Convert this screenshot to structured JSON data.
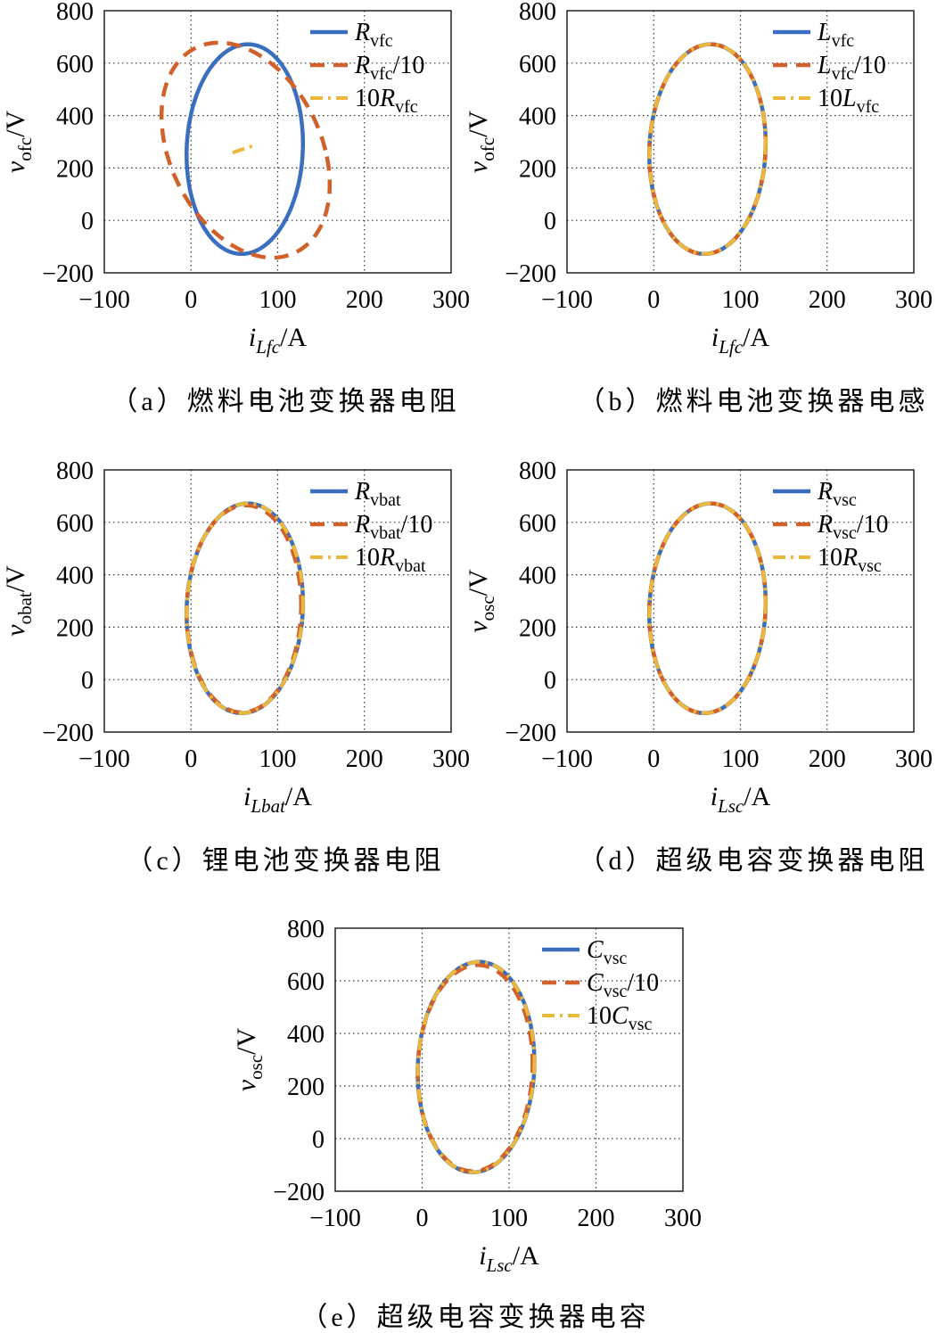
{
  "chart_data": [
    {
      "id": "a",
      "type": "line",
      "caption": "（a）燃料电池变换器电阻",
      "xlabel": {
        "main": "i",
        "sub": "Lfc",
        "unit": "/A"
      },
      "ylabel": {
        "main": "v",
        "sub": "ofc",
        "unit": "/V"
      },
      "xlim": [
        -100,
        300
      ],
      "ylim": [
        -200,
        800
      ],
      "xticks": [
        -100,
        0,
        100,
        200,
        300
      ],
      "yticks": [
        -200,
        0,
        200,
        400,
        600,
        800
      ],
      "grid": true,
      "legend_position": "top-right",
      "series": [
        {
          "legend": {
            "pre": "",
            "sym": "R",
            "sub": "vfc",
            "post": ""
          },
          "color": "#3a6fbf",
          "style": "solid",
          "shape": "ellipse",
          "center": [
            62,
            272
          ],
          "radii": [
            67,
            400
          ],
          "tilt": 0.06
        },
        {
          "legend": {
            "pre": "",
            "sym": "R",
            "sub": "vfc",
            "post": "/10"
          },
          "color": "#d2602a",
          "style": "dash",
          "shape": "ellipse",
          "center": [
            63,
            268
          ],
          "radii": [
            92,
            410
          ],
          "tilt": -0.5
        },
        {
          "legend": {
            "pre": "10",
            "sym": "R",
            "sub": "vfc",
            "post": ""
          },
          "color": "#ecb83b",
          "style": "dashdot",
          "shape": "segment",
          "points": [
            [
              48,
              258
            ],
            [
              58,
              270
            ],
            [
              72,
              285
            ]
          ]
        }
      ]
    },
    {
      "id": "b",
      "type": "line",
      "caption": "（b）燃料电池变换器电感",
      "xlabel": {
        "main": "i",
        "sub": "Lfc",
        "unit": "/A"
      },
      "ylabel": {
        "main": "v",
        "sub": "ofc",
        "unit": "/V"
      },
      "xlim": [
        -100,
        300
      ],
      "ylim": [
        -200,
        800
      ],
      "xticks": [
        -100,
        0,
        100,
        200,
        300
      ],
      "yticks": [
        -200,
        0,
        200,
        400,
        600,
        800
      ],
      "grid": true,
      "legend_position": "top-right",
      "series": [
        {
          "legend": {
            "pre": "",
            "sym": "L",
            "sub": "vfc",
            "post": ""
          },
          "color": "#3a6fbf",
          "style": "solid",
          "shape": "ellipse",
          "center": [
            62,
            272
          ],
          "radii": [
            67,
            400
          ],
          "tilt": 0.06
        },
        {
          "legend": {
            "pre": "",
            "sym": "L",
            "sub": "vfc",
            "post": "/10"
          },
          "color": "#d2602a",
          "style": "dash",
          "shape": "ellipse",
          "center": [
            62,
            272
          ],
          "radii": [
            67,
            400
          ],
          "tilt": 0.06
        },
        {
          "legend": {
            "pre": "10",
            "sym": "L",
            "sub": "vfc",
            "post": ""
          },
          "color": "#ecb83b",
          "style": "dashdot",
          "shape": "ellipse",
          "center": [
            62,
            272
          ],
          "radii": [
            67,
            400
          ],
          "tilt": 0.06
        }
      ]
    },
    {
      "id": "c",
      "type": "line",
      "caption": "（c）锂电池变换器电阻",
      "xlabel": {
        "main": "i",
        "sub": "Lbat",
        "unit": "/A"
      },
      "ylabel": {
        "main": "v",
        "sub": "obat",
        "unit": "/V"
      },
      "xlim": [
        -100,
        300
      ],
      "ylim": [
        -200,
        800
      ],
      "xticks": [
        -100,
        0,
        100,
        200,
        300
      ],
      "yticks": [
        -200,
        0,
        200,
        400,
        600,
        800
      ],
      "grid": true,
      "legend_position": "top-right",
      "series": [
        {
          "legend": {
            "pre": "",
            "sym": "R",
            "sub": "vbat",
            "post": ""
          },
          "color": "#3a6fbf",
          "style": "solid",
          "shape": "ellipse",
          "center": [
            62,
            272
          ],
          "radii": [
            67,
            400
          ],
          "tilt": 0.06
        },
        {
          "legend": {
            "pre": "",
            "sym": "R",
            "sub": "vbat",
            "post": "/10"
          },
          "color": "#d2602a",
          "style": "dash",
          "shape": "ellipse",
          "center": [
            61,
            270
          ],
          "radii": [
            66,
            395
          ],
          "tilt": 0.04
        },
        {
          "legend": {
            "pre": "10",
            "sym": "R",
            "sub": "vbat",
            "post": ""
          },
          "color": "#ecb83b",
          "style": "dashdot",
          "shape": "ellipse",
          "center": [
            62,
            272
          ],
          "radii": [
            67,
            400
          ],
          "tilt": 0.06
        }
      ]
    },
    {
      "id": "d",
      "type": "line",
      "caption": "（d）超级电容变换器电阻",
      "xlabel": {
        "main": "i",
        "sub": "Lsc",
        "unit": "/A"
      },
      "ylabel": {
        "main": "v",
        "sub": "osc",
        "unit": "/V"
      },
      "xlim": [
        -100,
        300
      ],
      "ylim": [
        -200,
        800
      ],
      "xticks": [
        -100,
        0,
        100,
        200,
        300
      ],
      "yticks": [
        -200,
        0,
        200,
        400,
        600,
        800
      ],
      "grid": true,
      "legend_position": "top-right",
      "series": [
        {
          "legend": {
            "pre": "",
            "sym": "R",
            "sub": "vsc",
            "post": ""
          },
          "color": "#3a6fbf",
          "style": "solid",
          "shape": "ellipse",
          "center": [
            62,
            272
          ],
          "radii": [
            67,
            400
          ],
          "tilt": 0.06
        },
        {
          "legend": {
            "pre": "",
            "sym": "R",
            "sub": "vsc",
            "post": "/10"
          },
          "color": "#d2602a",
          "style": "dash",
          "shape": "ellipse",
          "center": [
            62,
            272
          ],
          "radii": [
            67,
            400
          ],
          "tilt": 0.06
        },
        {
          "legend": {
            "pre": "10",
            "sym": "R",
            "sub": "vsc",
            "post": ""
          },
          "color": "#ecb83b",
          "style": "dashdot",
          "shape": "ellipse",
          "center": [
            62,
            272
          ],
          "radii": [
            67,
            400
          ],
          "tilt": 0.06
        }
      ]
    },
    {
      "id": "e",
      "type": "line",
      "caption": "（e）超级电容变换器电容",
      "xlabel": {
        "main": "i",
        "sub": "Lsc",
        "unit": "/A"
      },
      "ylabel": {
        "main": "v",
        "sub": "osc",
        "unit": "/V"
      },
      "xlim": [
        -100,
        300
      ],
      "ylim": [
        -200,
        800
      ],
      "xticks": [
        -100,
        0,
        100,
        200,
        300
      ],
      "yticks": [
        -200,
        0,
        200,
        400,
        600,
        800
      ],
      "grid": true,
      "legend_position": "top-right",
      "series": [
        {
          "legend": {
            "pre": "",
            "sym": "C",
            "sub": "vsc",
            "post": ""
          },
          "color": "#3a6fbf",
          "style": "solid",
          "shape": "ellipse",
          "center": [
            62,
            272
          ],
          "radii": [
            67,
            400
          ],
          "tilt": 0.06
        },
        {
          "legend": {
            "pre": "",
            "sym": "C",
            "sub": "vsc",
            "post": "/10"
          },
          "color": "#d2602a",
          "style": "dash",
          "shape": "ellipse",
          "center": [
            61,
            268
          ],
          "radii": [
            66,
            392
          ],
          "tilt": 0.05
        },
        {
          "legend": {
            "pre": "10",
            "sym": "C",
            "sub": "vsc",
            "post": ""
          },
          "color": "#ecb83b",
          "style": "dashdot",
          "shape": "ellipse",
          "center": [
            62,
            272
          ],
          "radii": [
            67,
            400
          ],
          "tilt": 0.06
        }
      ]
    }
  ]
}
